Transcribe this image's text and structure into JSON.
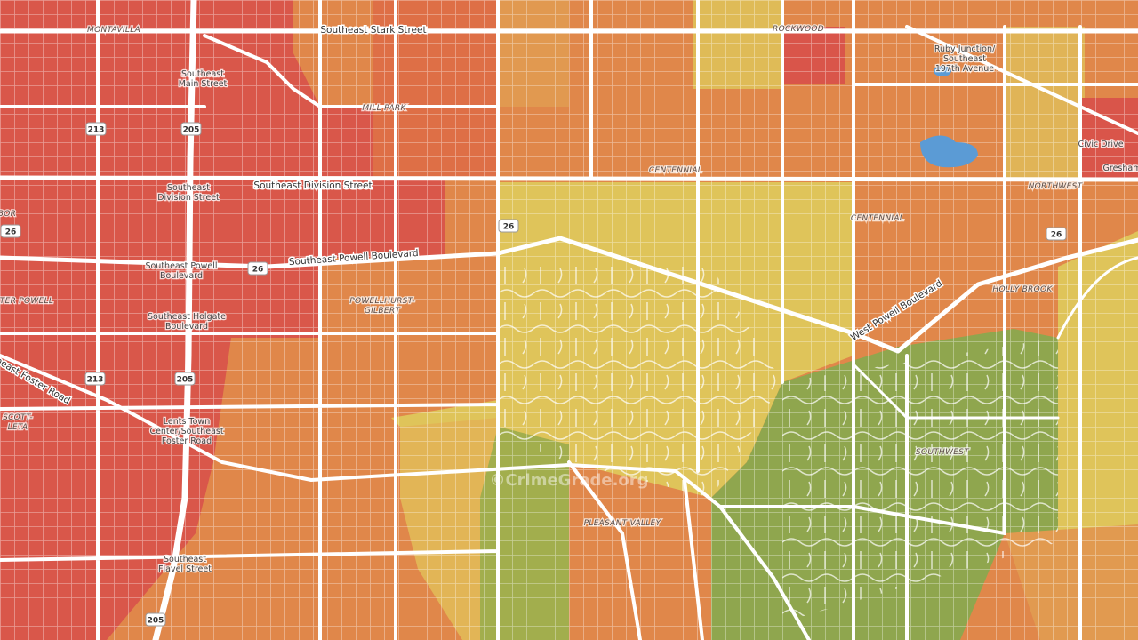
{
  "map": {
    "labels": [
      {
        "kind": "hood",
        "lines": [
          "MONTAVILLA"
        ]
      },
      {
        "kind": "street",
        "lines": [
          "Southeast Stark Street"
        ]
      },
      {
        "kind": "hood",
        "lines": [
          "ROCKWOOD"
        ]
      },
      {
        "kind": "place",
        "lines": [
          "Ruby Junction/",
          "Southeast",
          "197th Avenue"
        ]
      },
      {
        "kind": "place",
        "lines": [
          "Southeast",
          "Main Street"
        ]
      },
      {
        "kind": "hood",
        "lines": [
          "MILL PARK"
        ]
      },
      {
        "kind": "hood",
        "lines": [
          "CENTENNIAL"
        ]
      },
      {
        "kind": "place",
        "lines": [
          "Civic Drive"
        ]
      },
      {
        "kind": "place",
        "lines": [
          "Gresham"
        ]
      },
      {
        "kind": "street",
        "lines": [
          "Southeast Division Street"
        ]
      },
      {
        "kind": "place",
        "lines": [
          "Southeast",
          "Division Street"
        ]
      },
      {
        "kind": "hood",
        "lines": [
          "NORTHWEST"
        ]
      },
      {
        "kind": "hood",
        "lines": [
          "BOR"
        ]
      },
      {
        "kind": "hood",
        "lines": [
          "CENTENNIAL"
        ]
      },
      {
        "kind": "street",
        "lines": [
          "Southeast Powell Boulevard"
        ]
      },
      {
        "kind": "place",
        "lines": [
          "Southeast Powell",
          "Boulevard"
        ]
      },
      {
        "kind": "hood",
        "lines": [
          "HOLLY BROOK"
        ]
      },
      {
        "kind": "hood",
        "lines": [
          "TER POWELL"
        ]
      },
      {
        "kind": "hood",
        "lines": [
          "POWELLHURST-",
          "GILBERT"
        ]
      },
      {
        "kind": "place",
        "lines": [
          "Southeast Holgate",
          "Boulevard"
        ]
      },
      {
        "kind": "street",
        "lines": [
          "West Powell Boulevard"
        ]
      },
      {
        "kind": "street",
        "lines": [
          "Southeast Foster Road"
        ]
      },
      {
        "kind": "hood",
        "lines": [
          "SCOTT-",
          "LETA"
        ]
      },
      {
        "kind": "place",
        "lines": [
          "Lents Town",
          "Center/Southeast",
          "Foster Road"
        ]
      },
      {
        "kind": "hood",
        "lines": [
          "SOUTHWEST"
        ]
      },
      {
        "kind": "hood",
        "lines": [
          "PLEASANT VALLEY"
        ]
      },
      {
        "kind": "place",
        "lines": [
          "Southeast",
          "Flavel Street"
        ]
      }
    ],
    "shields": [
      "213",
      "205",
      "26",
      "26",
      "26",
      "26",
      "213",
      "205",
      "205"
    ],
    "watermark": "©CrimeGrade.org"
  }
}
